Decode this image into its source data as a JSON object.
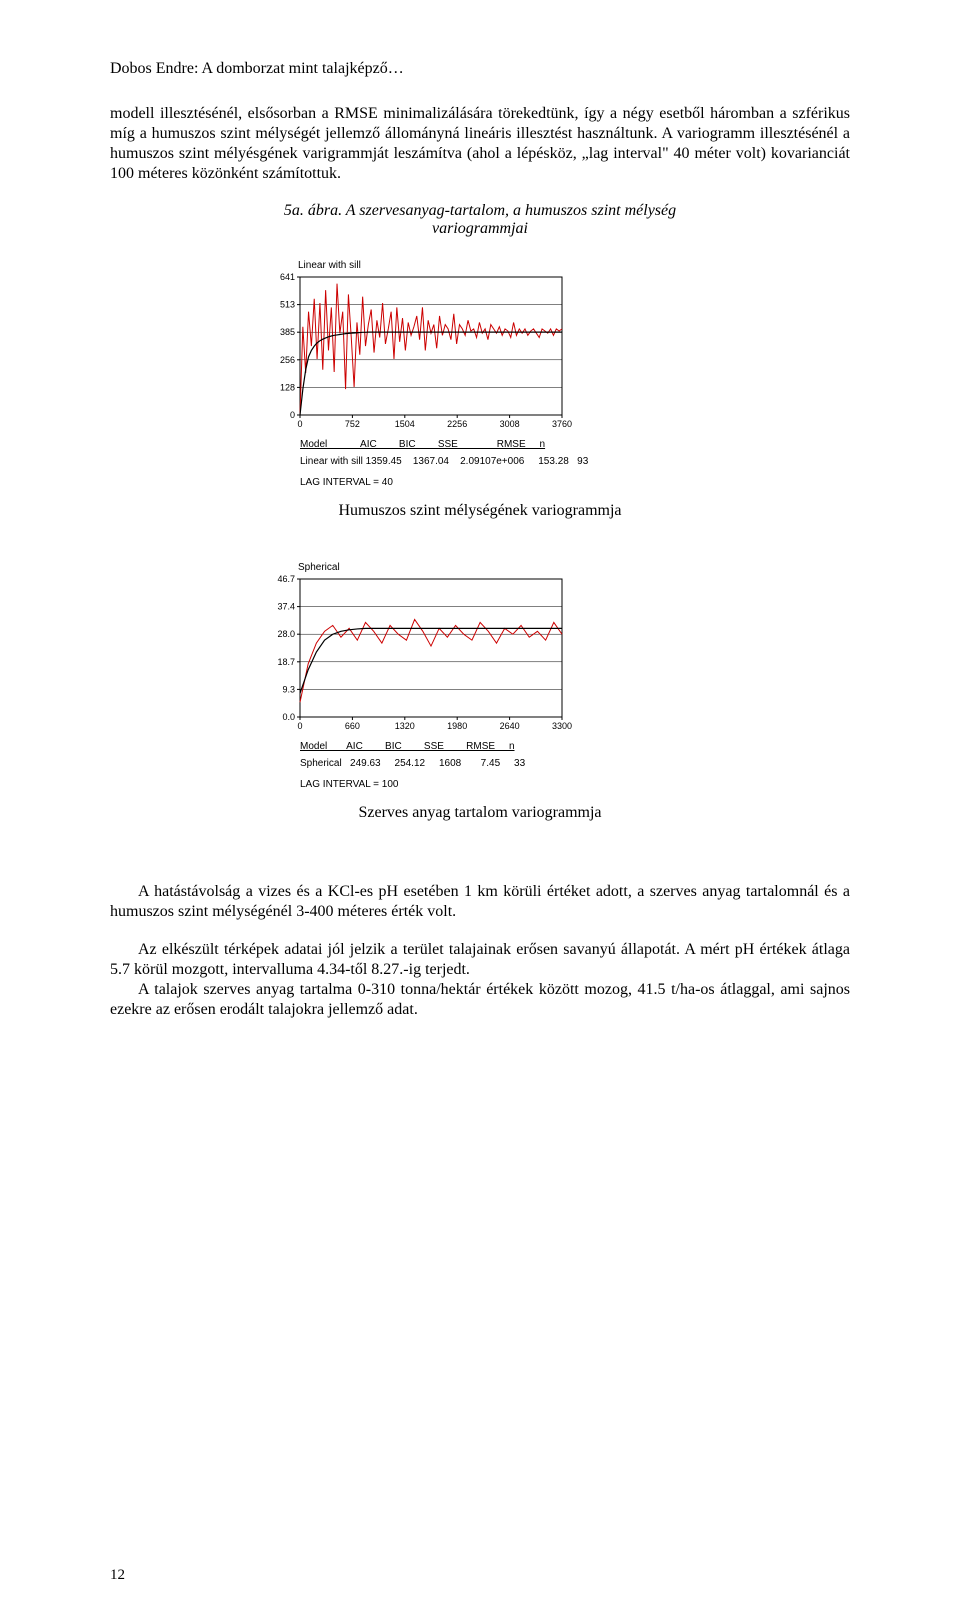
{
  "header": "Dobos Endre: A domborzat mint talajképző…",
  "para1": "modell illesztésénél, elsősorban a RMSE minimalizálására törekedtünk, így a négy esetből háromban a szférikus míg a humuszos szint mélységét jellemző állományná lineáris illesztést használtunk. A variogramm illesztésénél a humuszos szint mélyésgének varigrammját leszámítva (ahol a lépésköz, „lag interval\" 40 méter volt) kovarianciát 100 méteres közönként számítottuk.",
  "fig_caption": "5a. ábra. A szervesanyag-tartalom, a humuszos szint mélység variogrammjai",
  "chart1": {
    "title": "Linear with sill",
    "type": "line",
    "y_ticks": [
      "0",
      "128",
      "256",
      "385",
      "513",
      "641"
    ],
    "x_ticks": [
      "0",
      "752",
      "1504",
      "2256",
      "3008",
      "3760"
    ],
    "ylim": [
      0,
      641
    ],
    "xlim": [
      0,
      3760
    ],
    "line_color": "#cc0000",
    "fit_color": "#000000",
    "bg": "#ffffff",
    "grid": "#000000",
    "values": [
      0,
      410,
      195,
      480,
      320,
      540,
      260,
      520,
      210,
      580,
      300,
      500,
      200,
      610,
      380,
      480,
      120,
      560,
      360,
      130,
      430,
      280,
      550,
      320,
      420,
      490,
      290,
      440,
      360,
      520,
      330,
      400,
      480,
      260,
      500,
      340,
      450,
      300,
      430,
      370,
      410,
      460,
      350,
      500,
      300,
      440,
      380,
      420,
      310,
      460,
      370,
      420,
      400,
      350,
      470,
      330,
      420,
      400,
      370,
      440,
      390,
      400,
      360,
      430,
      380,
      400,
      350,
      420,
      400,
      380,
      410,
      370,
      400,
      390,
      360,
      430,
      370,
      400,
      380,
      400,
      370,
      390,
      400,
      380,
      360,
      400,
      390,
      380,
      400,
      370,
      400,
      390,
      400
    ],
    "fit_values": [
      0,
      120,
      210,
      270,
      300,
      320,
      335,
      345,
      352,
      358,
      363,
      367,
      370,
      372,
      374,
      376,
      378,
      379,
      380,
      381,
      382,
      383,
      384,
      384,
      385,
      385,
      385,
      385,
      385,
      385,
      385,
      385,
      385,
      385,
      385,
      385,
      385,
      385,
      385,
      385,
      385,
      385,
      385,
      385,
      385,
      385,
      385,
      385,
      385,
      385,
      385,
      385,
      385,
      385,
      385,
      385,
      385,
      385,
      385,
      385,
      385,
      385,
      385,
      385,
      385,
      385,
      385,
      385,
      385,
      385,
      385,
      385,
      385,
      385,
      385,
      385,
      385,
      385,
      385,
      385,
      385,
      385,
      385,
      385,
      385,
      385,
      385,
      385,
      385,
      385,
      385,
      385,
      385
    ],
    "stats_header": "Model            AIC        BIC        SSE              RMSE     n",
    "stats_row": "Linear with sill 1359.45    1367.04    2.09107e+006     153.28   93",
    "lag": "LAG INTERVAL = 40"
  },
  "sub_caption1": "Humuszos szint mélységének variogrammja",
  "chart2": {
    "title": "Spherical",
    "type": "line",
    "y_ticks": [
      "0.0",
      "9.3",
      "18.7",
      "28.0",
      "37.4",
      "46.7"
    ],
    "x_ticks": [
      "0",
      "660",
      "1320",
      "1980",
      "2640",
      "3300"
    ],
    "ylim": [
      0,
      46.7
    ],
    "xlim": [
      0,
      3300
    ],
    "line_color": "#cc0000",
    "fit_color": "#000000",
    "bg": "#ffffff",
    "grid": "#000000",
    "values": [
      5,
      18,
      25,
      29,
      31,
      27,
      30,
      26,
      32,
      29,
      25,
      31,
      28,
      26,
      33,
      29,
      24,
      30,
      27,
      31,
      28,
      26,
      32,
      29,
      25,
      30,
      28,
      31,
      27,
      29,
      26,
      32,
      28
    ],
    "fit_values": [
      8,
      16,
      22,
      26,
      28,
      29,
      29.5,
      29.8,
      30,
      30,
      30,
      30,
      30,
      30,
      30,
      30,
      30,
      30,
      30,
      30,
      30,
      30,
      30,
      30,
      30,
      30,
      30,
      30,
      30,
      30,
      30,
      30,
      30
    ],
    "stats_header": "Model       AIC        BIC        SSE        RMSE     n",
    "stats_row": "Spherical   249.63     254.12     1608       7.45     33",
    "lag": "LAG INTERVAL = 100"
  },
  "sub_caption2": "Szerves anyag tartalom variogrammja",
  "para2": "A hatástávolság a vizes és a KCl-es pH esetében 1 km körüli értéket adott, a szerves anyag tartalomnál és a humuszos szint mélységénél 3-400 méteres érték volt.",
  "para3": "Az elkészült térképek adatai jól jelzik a terület talajainak erősen savanyú állapotát. A mért pH értékek átlaga 5.7 körül mozgott, intervalluma 4.34-től 8.27.-ig terjedt.",
  "para4": "A talajok szerves anyag tartalma 0-310 tonna/hektár értékek között mozog, 41.5 t/ha-os átlaggal, ami sajnos ezekre az erősen erodált talajokra jellemző adat.",
  "page_number": "12"
}
